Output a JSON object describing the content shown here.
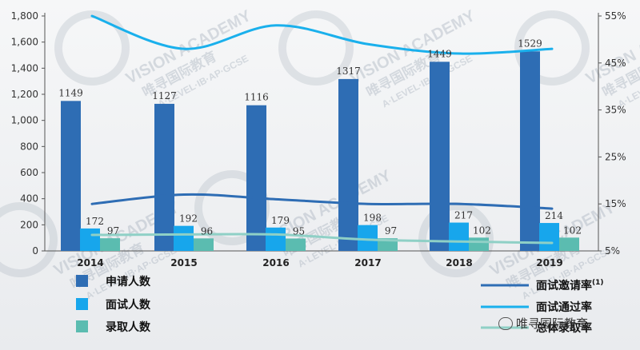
{
  "chart_data": {
    "type": "bar",
    "categories": [
      "2014",
      "2015",
      "2016",
      "2017",
      "2018",
      "2019"
    ],
    "series": [
      {
        "name": "申请人数",
        "type": "bar",
        "values": [
          1149,
          1127,
          1116,
          1317,
          1449,
          1529
        ],
        "color": "#2e6db4"
      },
      {
        "name": "面试人数",
        "type": "bar",
        "values": [
          172,
          192,
          179,
          198,
          217,
          214
        ],
        "color": "#17a6ec"
      },
      {
        "name": "录取人数",
        "type": "bar",
        "values": [
          97,
          96,
          95,
          97,
          102,
          102
        ],
        "color": "#5bbcb0"
      },
      {
        "name": "面试邀请率",
        "sup": "(1)",
        "type": "line",
        "axis": "right",
        "values": [
          15.0,
          17.0,
          16.0,
          15.0,
          15.0,
          14.0
        ],
        "color": "#2e6db4"
      },
      {
        "name": "面试通过率",
        "type": "line",
        "axis": "right",
        "values": [
          55.0,
          48.0,
          53.0,
          49.0,
          47.0,
          48.0
        ],
        "color": "#1ab0ec"
      },
      {
        "name": "总体录取率",
        "type": "line",
        "axis": "right",
        "values": [
          8.4,
          8.5,
          8.5,
          7.4,
          7.0,
          6.7
        ],
        "color": "#8fd0c6"
      }
    ],
    "yleft": {
      "ylim": [
        0,
        1800
      ],
      "ticks": [
        "0",
        "200",
        "400",
        "600",
        "800",
        "1,000",
        "1,200",
        "1,400",
        "1,600",
        "1,800"
      ]
    },
    "yright": {
      "ylim": [
        5,
        55
      ],
      "ticks": [
        "5%",
        "15%",
        "25%",
        "35%",
        "45%",
        "55%"
      ]
    },
    "legend_position": "bottom",
    "grid": false
  },
  "watermark": {
    "brand": "VISION ACADEMY",
    "cn": "唯寻国际教育",
    "sub": "A·LEVEL·IB·AP·GCSE"
  },
  "footer": {
    "wechat_account": "唯寻国际教育"
  }
}
